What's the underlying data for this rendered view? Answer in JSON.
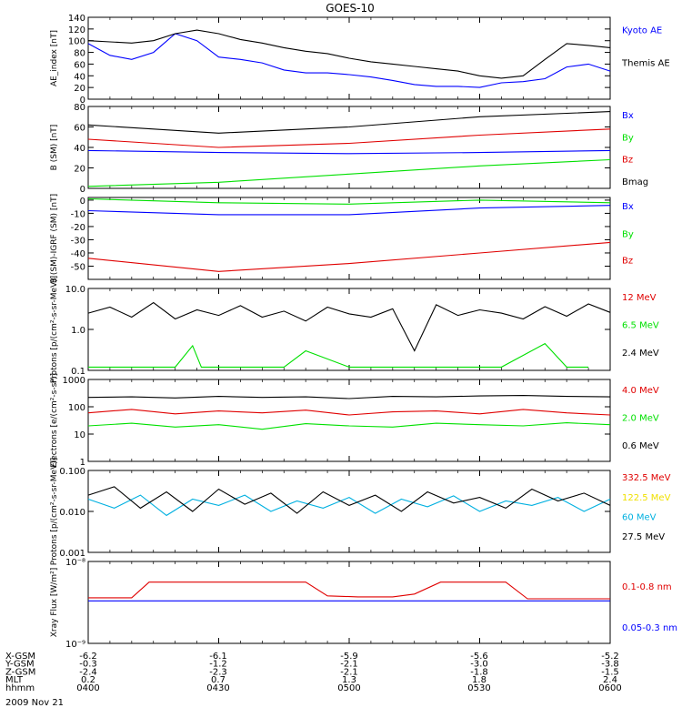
{
  "title": "GOES-10",
  "date_label": "2009 Nov 21",
  "colors": {
    "black": "#000000",
    "blue": "#0000ff",
    "green": "#00e000",
    "red": "#e00000",
    "cyan": "#00b0e0",
    "yellow": "#f0e000"
  },
  "orbit_table": {
    "rows": [
      {
        "label": "X-GSM",
        "values": [
          "-6.2",
          "-6.1",
          "-5.9",
          "-5.6",
          "-5.2"
        ]
      },
      {
        "label": "Y-GSM",
        "values": [
          "-0.3",
          "-1.2",
          "-2.1",
          "-3.0",
          "-3.8"
        ]
      },
      {
        "label": "Z-GSM",
        "values": [
          "-2.4",
          "-2.3",
          "-2.1",
          "-1.8",
          "-1.5"
        ]
      },
      {
        "label": "MLT",
        "values": [
          "0.2",
          "0.7",
          "1.3",
          "1.8",
          "2.4"
        ]
      },
      {
        "label": "hhmm",
        "values": [
          "0400",
          "0430",
          "0500",
          "0530",
          "0600"
        ]
      }
    ]
  },
  "chart_data": [
    {
      "type": "line",
      "ylabel": "AE_index [nT]",
      "ylim": [
        0,
        140
      ],
      "scale": "linear",
      "yticks": [
        "0",
        "20",
        "40",
        "60",
        "80",
        "100",
        "120",
        "140"
      ],
      "time_range": [
        "0400",
        "0600"
      ],
      "series": [
        {
          "name": "Kyoto AE",
          "color": "blue",
          "label_offset": 0.15,
          "x": [
            0,
            5,
            10,
            15,
            20,
            25,
            30,
            35,
            40,
            45,
            50,
            55,
            60,
            65,
            70,
            75,
            80,
            85,
            90,
            95,
            100,
            105,
            110,
            115,
            120
          ],
          "y": [
            95,
            75,
            68,
            80,
            112,
            100,
            72,
            68,
            62,
            50,
            45,
            45,
            42,
            38,
            32,
            25,
            22,
            22,
            20,
            28,
            30,
            35,
            55,
            60,
            48
          ]
        },
        {
          "name": "Themis AE",
          "color": "black",
          "label_offset": 0.55,
          "x": [
            0,
            5,
            10,
            15,
            20,
            25,
            30,
            35,
            40,
            45,
            50,
            55,
            60,
            65,
            70,
            75,
            80,
            85,
            90,
            95,
            100,
            105,
            110,
            115,
            120
          ],
          "y": [
            100,
            98,
            96,
            100,
            112,
            118,
            112,
            102,
            96,
            88,
            82,
            78,
            70,
            64,
            60,
            56,
            52,
            48,
            40,
            36,
            40,
            68,
            95,
            92,
            88
          ]
        }
      ]
    },
    {
      "type": "line",
      "ylabel": "B (SM) [nT]",
      "ylim": [
        0,
        80
      ],
      "scale": "linear",
      "yticks": [
        "0",
        "20",
        "40",
        "60",
        "80"
      ],
      "time_range": [
        "0400",
        "0600"
      ],
      "series": [
        {
          "name": "Bx",
          "color": "blue",
          "label_offset": 0.1,
          "x": [
            0,
            30,
            60,
            90,
            120
          ],
          "y": [
            37,
            35,
            34,
            35,
            37
          ]
        },
        {
          "name": "By",
          "color": "green",
          "label_offset": 0.37,
          "x": [
            0,
            30,
            60,
            90,
            120
          ],
          "y": [
            2,
            6,
            14,
            22,
            28
          ]
        },
        {
          "name": "Bz",
          "color": "red",
          "label_offset": 0.64,
          "x": [
            0,
            30,
            60,
            90,
            120
          ],
          "y": [
            48,
            40,
            44,
            52,
            58
          ]
        },
        {
          "name": "Bmag",
          "color": "black",
          "label_offset": 0.91,
          "x": [
            0,
            30,
            60,
            90,
            120
          ],
          "y": [
            62,
            54,
            60,
            70,
            75
          ]
        }
      ]
    },
    {
      "type": "line",
      "ylabel": "B (SM)-IGRF (SM) [nT]",
      "ylim": [
        -60,
        2
      ],
      "scale": "linear",
      "yticks": [
        "0",
        "-10",
        "-20",
        "-30",
        "-40",
        "-50"
      ],
      "time_range": [
        "0400",
        "0600"
      ],
      "series": [
        {
          "name": "Bx",
          "color": "blue",
          "label_offset": 0.1,
          "x": [
            0,
            30,
            60,
            90,
            120
          ],
          "y": [
            -8,
            -11,
            -11,
            -6,
            -4
          ]
        },
        {
          "name": "By",
          "color": "green",
          "label_offset": 0.44,
          "x": [
            0,
            30,
            60,
            90,
            120
          ],
          "y": [
            1,
            -2,
            -3,
            0,
            -2
          ]
        },
        {
          "name": "Bz",
          "color": "red",
          "label_offset": 0.76,
          "x": [
            0,
            30,
            60,
            90,
            120
          ],
          "y": [
            -44,
            -54,
            -48,
            -40,
            -32
          ]
        }
      ]
    },
    {
      "type": "line",
      "ylabel": "Protons [p/(cm²-s-sr-MeV)]",
      "ylim": [
        0.1,
        10
      ],
      "scale": "log",
      "yticks": [
        "0.1",
        "1.0",
        "10.0"
      ],
      "time_range": [
        "0400",
        "0600"
      ],
      "series": [
        {
          "name": "12 MeV",
          "color": "red",
          "label_offset": 0.1,
          "x": [],
          "y": []
        },
        {
          "name": "6.5 MeV",
          "color": "green",
          "label_offset": 0.44,
          "x": [
            0,
            10,
            20,
            24,
            26,
            40,
            45,
            50,
            60,
            75,
            85,
            95,
            105,
            110,
            115
          ],
          "y": [
            0.12,
            0.12,
            0.12,
            0.4,
            0.12,
            0.12,
            0.12,
            0.3,
            0.12,
            0.12,
            0.12,
            0.12,
            0.45,
            0.12,
            0.12
          ]
        },
        {
          "name": "2.4 MeV",
          "color": "black",
          "label_offset": 0.78,
          "x": [
            0,
            5,
            10,
            15,
            20,
            25,
            30,
            35,
            40,
            45,
            50,
            55,
            60,
            65,
            70,
            75,
            80,
            85,
            90,
            95,
            100,
            105,
            110,
            115,
            120
          ],
          "y": [
            2.5,
            3.5,
            2.0,
            4.5,
            1.8,
            3.0,
            2.2,
            3.8,
            2.0,
            2.8,
            1.6,
            3.5,
            2.4,
            2.0,
            3.2,
            0.3,
            4.0,
            2.2,
            3.0,
            2.5,
            1.8,
            3.6,
            2.1,
            4.2,
            2.6
          ]
        }
      ]
    },
    {
      "type": "line",
      "ylabel": "Electrons [e/(cm²-s-sr)]",
      "ylim": [
        1,
        1000
      ],
      "scale": "log",
      "yticks": [
        "1",
        "10",
        "100",
        "1000"
      ],
      "time_range": [
        "0400",
        "0600"
      ],
      "series": [
        {
          "name": "4.0 MeV",
          "color": "red",
          "label_offset": 0.12,
          "x": [
            0,
            10,
            20,
            30,
            40,
            50,
            60,
            70,
            80,
            90,
            100,
            110,
            120
          ],
          "y": [
            60,
            80,
            55,
            70,
            60,
            75,
            50,
            65,
            70,
            55,
            80,
            60,
            50
          ]
        },
        {
          "name": "2.0 MeV",
          "color": "green",
          "label_offset": 0.46,
          "x": [
            0,
            10,
            20,
            30,
            40,
            50,
            60,
            70,
            80,
            90,
            100,
            110,
            120
          ],
          "y": [
            20,
            25,
            18,
            22,
            15,
            24,
            20,
            18,
            25,
            22,
            20,
            26,
            22
          ]
        },
        {
          "name": "0.6 MeV",
          "color": "black",
          "label_offset": 0.8,
          "x": [
            0,
            10,
            20,
            30,
            40,
            50,
            60,
            70,
            80,
            90,
            100,
            110,
            120
          ],
          "y": [
            220,
            230,
            210,
            240,
            220,
            230,
            200,
            240,
            230,
            250,
            260,
            240,
            230
          ]
        }
      ]
    },
    {
      "type": "line",
      "ylabel": "Protons [p/(cm²-s-sr-MeV)]",
      "ylim": [
        0.001,
        0.1
      ],
      "scale": "log",
      "yticks": [
        "0.001",
        "0.010",
        "0.100"
      ],
      "time_range": [
        "0400",
        "0600"
      ],
      "series": [
        {
          "name": "332.5 MeV",
          "color": "red",
          "label_offset": 0.08,
          "x": [],
          "y": []
        },
        {
          "name": "122.5 MeV",
          "color": "yellow",
          "label_offset": 0.32,
          "x": [],
          "y": []
        },
        {
          "name": "60 MeV",
          "color": "cyan",
          "label_offset": 0.56,
          "x": [
            0,
            6,
            12,
            18,
            24,
            30,
            36,
            42,
            48,
            54,
            60,
            66,
            72,
            78,
            84,
            90,
            96,
            102,
            108,
            114,
            120
          ],
          "y": [
            0.02,
            0.012,
            0.025,
            0.008,
            0.02,
            0.014,
            0.025,
            0.01,
            0.018,
            0.012,
            0.022,
            0.009,
            0.02,
            0.013,
            0.024,
            0.01,
            0.018,
            0.014,
            0.022,
            0.01,
            0.02
          ]
        },
        {
          "name": "27.5 MeV",
          "color": "black",
          "label_offset": 0.8,
          "x": [
            0,
            6,
            12,
            18,
            24,
            30,
            36,
            42,
            48,
            54,
            60,
            66,
            72,
            78,
            84,
            90,
            96,
            102,
            108,
            114,
            120
          ],
          "y": [
            0.025,
            0.04,
            0.012,
            0.03,
            0.01,
            0.035,
            0.015,
            0.028,
            0.009,
            0.03,
            0.014,
            0.025,
            0.01,
            0.03,
            0.016,
            0.022,
            0.012,
            0.035,
            0.018,
            0.028,
            0.014
          ]
        }
      ]
    },
    {
      "type": "line",
      "ylabel": "Xray Flux [W/m²]",
      "ylim": [
        1e-09,
        1e-08
      ],
      "scale": "log",
      "yticks": [
        "10⁻⁹",
        "10⁻⁸"
      ],
      "time_range": [
        "0400",
        "0600"
      ],
      "series": [
        {
          "name": "0.1-0.8 nm",
          "color": "red",
          "label_offset": 0.3,
          "x": [
            0,
            10,
            14,
            50,
            55,
            62,
            70,
            75,
            81,
            96,
            101,
            110,
            120
          ],
          "y": [
            3.6e-09,
            3.6e-09,
            5.6e-09,
            5.6e-09,
            3.8e-09,
            3.7e-09,
            3.7e-09,
            4e-09,
            5.6e-09,
            5.6e-09,
            3.5e-09,
            3.5e-09,
            3.5e-09
          ]
        },
        {
          "name": "0.05-0.3 nm",
          "color": "blue",
          "label_offset": 0.8,
          "x": [
            0,
            120
          ],
          "y": [
            3.3e-09,
            3.3e-09
          ]
        }
      ]
    }
  ]
}
